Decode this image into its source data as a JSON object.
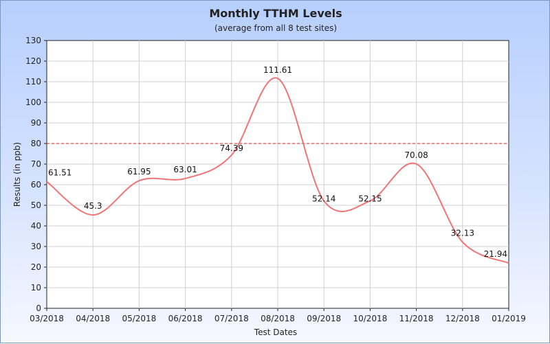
{
  "chart_data": {
    "type": "line",
    "title": "Monthly TTHM Levels",
    "subtitle": "(average from all 8 test sites)",
    "xlabel": "Test Dates",
    "ylabel": "Results (in ppb)",
    "categories": [
      "03/2018",
      "04/2018",
      "05/2018",
      "06/2018",
      "07/2018",
      "08/2018",
      "09/2018",
      "10/2018",
      "11/2018",
      "12/2018",
      "01/2019"
    ],
    "series": [
      {
        "values": [
          61.51,
          45.3,
          61.95,
          63.01,
          74.39,
          111.61,
          52.14,
          52.15,
          70.08,
          32.13,
          21.94
        ]
      }
    ],
    "data_labels": [
      "61.51",
      "45.3",
      "61.95",
      "63.01",
      "74.39",
      "111.61",
      "52.14",
      "52.15",
      "70.08",
      "32.13",
      "21.94"
    ],
    "ylim": [
      0,
      130
    ],
    "yticks": [
      "0",
      "10",
      "20",
      "30",
      "40",
      "50",
      "60",
      "70",
      "80",
      "90",
      "100",
      "110",
      "120",
      "130"
    ],
    "reference_line": {
      "value": 80,
      "color": "#cc2222"
    },
    "line_color": "#f07474",
    "grid": true
  }
}
